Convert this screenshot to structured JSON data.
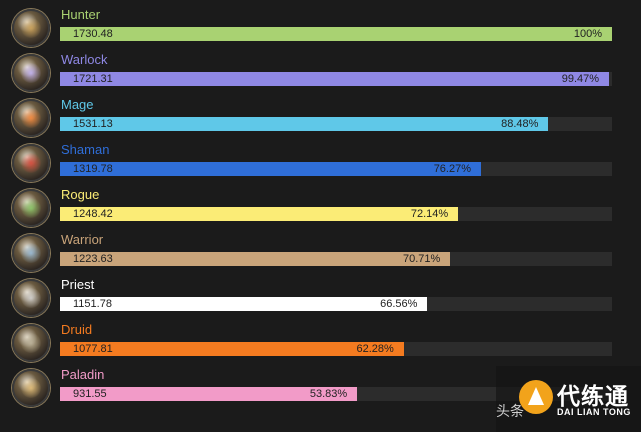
{
  "chart_data": {
    "type": "bar",
    "orientation": "horizontal",
    "categories": [
      "Hunter",
      "Warlock",
      "Mage",
      "Shaman",
      "Rogue",
      "Warrior",
      "Priest",
      "Druid",
      "Paladin"
    ],
    "values": [
      1730.48,
      1721.31,
      1531.13,
      1319.78,
      1248.42,
      1223.63,
      1151.78,
      1077.81,
      931.55
    ],
    "value_labels": [
      "1730.48",
      "1721.31",
      "1531.13",
      "1319.78",
      "1248.42",
      "1223.63",
      "1151.78",
      "1077.81",
      "931.55"
    ],
    "percent_labels": [
      "100%",
      "99.47%",
      "88.48%",
      "76.27%",
      "72.14%",
      "70.71%",
      "66.56%",
      "62.28%",
      "53.83%"
    ],
    "percent": [
      100,
      99.47,
      88.48,
      76.27,
      72.14,
      70.71,
      66.56,
      62.28,
      53.83
    ],
    "bar_colors": [
      "#a9d272",
      "#8f88e4",
      "#5fc8e8",
      "#2f6ed8",
      "#fbec76",
      "#c9a47a",
      "#ffffff",
      "#f47b20",
      "#f29bc8"
    ],
    "name_colors": [
      "#a9d272",
      "#8f88e4",
      "#5fc8e8",
      "#2f6ed8",
      "#fbec76",
      "#c9a47a",
      "#ffffff",
      "#f47b20",
      "#f29bc8"
    ],
    "icons": [
      "hunter-class-icon",
      "warlock-class-icon",
      "mage-class-icon",
      "shaman-class-icon",
      "rogue-class-icon",
      "warrior-class-icon",
      "priest-class-icon",
      "druid-class-icon",
      "paladin-class-icon"
    ],
    "xlim": [
      0,
      100
    ],
    "title": "",
    "xlabel": "",
    "ylabel": ""
  },
  "watermark": {
    "left_text": "头条",
    "brand_text": "代练通",
    "brand_sub": "DAI LIAN TONG"
  }
}
